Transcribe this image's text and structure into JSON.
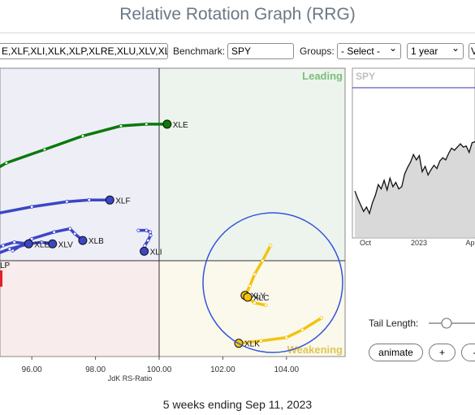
{
  "title": "Relative Rotation Graph (RRG)",
  "controls": {
    "symbols_value": "E,XLF,XLI,XLK,XLP,XLRE,XLU,XLV,XL",
    "benchmark_label": "Benchmark:",
    "benchmark_value": "SPY",
    "groups_label": "Groups:",
    "groups_value": "- Select -",
    "period_value": "1 year",
    "extra_value": "V"
  },
  "chart_data": [
    {
      "type": "scatter",
      "xlabel": "JdK RS-Ratio",
      "xticks": [
        "96.00",
        "98.00",
        "100.00",
        "102.00",
        "104.00"
      ],
      "quadrants": {
        "leading": "Leading",
        "weakening": "Weakening"
      },
      "series": [
        {
          "name": "XLE",
          "color": "#0a7a0a",
          "points": [
            [
              94.3,
              102.4
            ],
            [
              95.2,
              102.9
            ],
            [
              96.4,
              103.3
            ],
            [
              97.6,
              103.7
            ],
            [
              98.8,
              104.0
            ],
            [
              99.6,
              104.05
            ],
            [
              100.25,
              104.05
            ]
          ]
        },
        {
          "name": "XLF",
          "color": "#3b46c6",
          "points": [
            [
              94.9,
              101.4
            ],
            [
              96.0,
              101.6
            ],
            [
              97.1,
              101.75
            ],
            [
              97.8,
              101.8
            ],
            [
              98.45,
              101.8
            ]
          ]
        },
        {
          "name": "XLI",
          "color": "#3b46c6",
          "points": [
            [
              99.35,
              100.9
            ],
            [
              99.6,
              100.9
            ],
            [
              99.72,
              100.85
            ],
            [
              99.73,
              100.75
            ],
            [
              99.65,
              100.6
            ],
            [
              99.55,
              100.45
            ],
            [
              99.53,
              100.28
            ]
          ]
        },
        {
          "name": "XLB",
          "color": "#3b46c6",
          "points": [
            [
              95.4,
              100.3
            ],
            [
              96.0,
              100.65
            ],
            [
              96.7,
              100.85
            ],
            [
              97.2,
              100.95
            ],
            [
              97.35,
              100.8
            ],
            [
              97.6,
              100.6
            ]
          ]
        },
        {
          "name": "XLV",
          "color": "#3b46c6",
          "points": [
            [
              94.6,
              100.1
            ],
            [
              95.3,
              100.35
            ],
            [
              95.9,
              100.5
            ],
            [
              96.3,
              100.55
            ],
            [
              96.65,
              100.5
            ]
          ]
        },
        {
          "name": "XLE",
          "color": "#3b46c6",
          "points": [
            [
              94.6,
              100.25
            ],
            [
              95.1,
              100.45
            ],
            [
              95.45,
              100.55
            ],
            [
              95.9,
              100.5
            ]
          ]
        },
        {
          "name": "XLY",
          "color": "#f2c40f",
          "points": [
            [
              103.5,
              100.45
            ],
            [
              103.25,
              100.0
            ],
            [
              103.0,
              99.6
            ],
            [
              102.85,
              99.25
            ],
            [
              102.7,
              98.97
            ]
          ]
        },
        {
          "name": "XLC",
          "color": "#f2c40f",
          "points": [
            [
              103.35,
              98.68
            ],
            [
              103.0,
              98.75
            ],
            [
              102.85,
              98.85
            ],
            [
              102.78,
              98.92
            ]
          ]
        },
        {
          "name": "XLK",
          "color": "#f2c40f",
          "points": [
            [
              105.1,
              98.3
            ],
            [
              104.5,
              97.95
            ],
            [
              104.0,
              97.72
            ],
            [
              103.2,
              97.62
            ],
            [
              102.8,
              97.58
            ],
            [
              102.5,
              97.55
            ]
          ]
        }
      ]
    },
    {
      "type": "area",
      "title": "SPY",
      "xticks": [
        "Oct",
        "2023",
        "Ap"
      ],
      "values": [
        4.0,
        3.3,
        2.7,
        2.1,
        2.5,
        1.9,
        2.9,
        3.6,
        4.6,
        4.2,
        5.0,
        4.1,
        5.2,
        4.4,
        4.8,
        4.2,
        4.4,
        5.6,
        6.2,
        6.7,
        7.4,
        6.9,
        7.3,
        5.8,
        6.3,
        5.5,
        6.0,
        6.4,
        6.1,
        6.8,
        7.1,
        6.9,
        7.5,
        8.0,
        7.8,
        8.1,
        8.4,
        8.1,
        8.2,
        7.6,
        8.5,
        8.6
      ]
    }
  ],
  "tail_length_label": "Tail Length:",
  "buttons": {
    "animate": "animate",
    "plus": "+",
    "minus": "-"
  },
  "footer": "5 weeks ending Sep 11, 2023"
}
